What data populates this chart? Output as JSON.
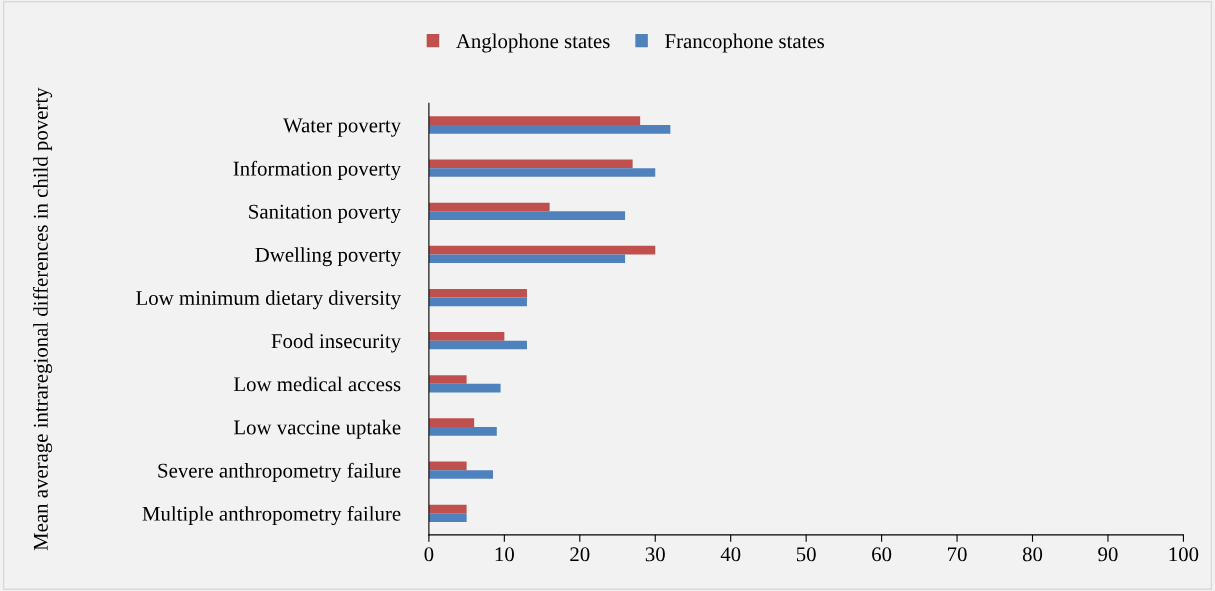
{
  "chart_data": {
    "type": "bar",
    "orientation": "horizontal",
    "ylabel": "Mean average intraregional differences in child poverty",
    "categories": [
      "Water poverty",
      "Information poverty",
      "Sanitation poverty",
      "Dwelling poverty",
      "Low minimum dietary diversity",
      "Food insecurity",
      "Low medical access",
      "Low vaccine uptake",
      "Severe anthropometry failure",
      "Multiple anthropometry failure"
    ],
    "series": [
      {
        "name": "Anglophone states",
        "color": "#c0504d",
        "values": [
          28,
          27,
          16,
          30,
          13,
          10,
          5,
          6,
          5,
          5
        ]
      },
      {
        "name": "Francophone states",
        "color": "#4f81bd",
        "values": [
          32,
          30,
          26,
          26,
          13,
          13,
          9.5,
          9,
          8.5,
          5
        ]
      }
    ],
    "xlim": [
      0,
      100
    ],
    "xticks": [
      0,
      10,
      20,
      30,
      40,
      50,
      60,
      70,
      80,
      90,
      100
    ],
    "grid": false,
    "legend": "top"
  }
}
